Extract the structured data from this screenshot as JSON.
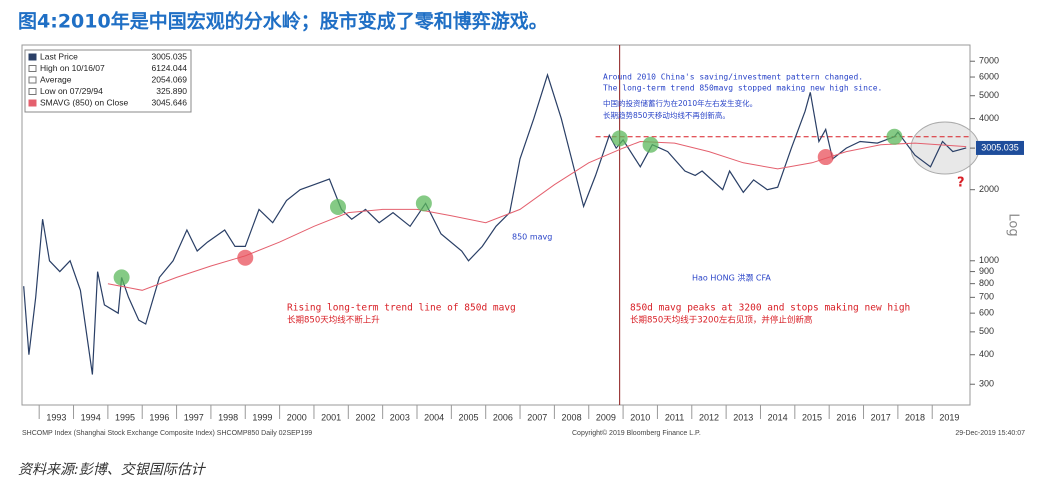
{
  "title": "图4:2010年是中国宏观的分水岭；股市变成了零和博弈游戏。",
  "source": "资料来源:彭博、交银国际估计",
  "chart_data": {
    "type": "line",
    "log_scale": true,
    "xlim": [
      1992.5,
      2020.1
    ],
    "ylim": [
      245,
      8200
    ],
    "xticks": [
      {
        "value": 1993,
        "label": "1993"
      },
      {
        "value": 1994,
        "label": "1994"
      },
      {
        "value": 1995,
        "label": "1995"
      },
      {
        "value": 1996,
        "label": "1996"
      },
      {
        "value": 1997,
        "label": "1997"
      },
      {
        "value": 1998,
        "label": "1998"
      },
      {
        "value": 1999,
        "label": "1999"
      },
      {
        "value": 2000,
        "label": "2000"
      },
      {
        "value": 2001,
        "label": "2001"
      },
      {
        "value": 2002,
        "label": "2002"
      },
      {
        "value": 2003,
        "label": "2003"
      },
      {
        "value": 2004,
        "label": "2004"
      },
      {
        "value": 2005,
        "label": "2005"
      },
      {
        "value": 2006,
        "label": "2006"
      },
      {
        "value": 2007,
        "label": "2007"
      },
      {
        "value": 2008,
        "label": "2008"
      },
      {
        "value": 2009,
        "label": "2009"
      },
      {
        "value": 2010,
        "label": "2010"
      },
      {
        "value": 2011,
        "label": "2011"
      },
      {
        "value": 2012,
        "label": "2012"
      },
      {
        "value": 2013,
        "label": "2013"
      },
      {
        "value": 2014,
        "label": "2014"
      },
      {
        "value": 2015,
        "label": "2015"
      },
      {
        "value": 2016,
        "label": "2016"
      },
      {
        "value": 2017,
        "label": "2017"
      },
      {
        "value": 2018,
        "label": "2018"
      },
      {
        "value": 2019,
        "label": "2019"
      }
    ],
    "yticks": [
      300,
      400,
      500,
      600,
      700,
      800,
      900,
      1000,
      2000,
      3000,
      4000,
      5000,
      6000,
      7000
    ],
    "y_label": "Log",
    "series": [
      {
        "name": "Last Price",
        "color": "#2a3f66",
        "x": [
          1992.55,
          1992.7,
          1992.9,
          1993.1,
          1993.3,
          1993.6,
          1993.9,
          1994.2,
          1994.55,
          1994.7,
          1994.9,
          1995.3,
          1995.4,
          1995.6,
          1995.9,
          1996.1,
          1996.5,
          1996.9,
          1997.3,
          1997.6,
          1997.9,
          1998.4,
          1998.7,
          1999.0,
          1999.4,
          1999.8,
          2000.2,
          2000.6,
          2001.0,
          2001.45,
          2001.8,
          2002.1,
          2002.5,
          2002.9,
          2003.3,
          2003.8,
          2004.25,
          2004.7,
          2005.3,
          2005.5,
          2005.9,
          2006.3,
          2006.7,
          2007.0,
          2007.4,
          2007.8,
          2008.2,
          2008.5,
          2008.85,
          2009.2,
          2009.6,
          2009.8,
          2010.0,
          2010.5,
          2010.85,
          2011.3,
          2011.8,
          2012.1,
          2012.3,
          2012.9,
          2013.1,
          2013.5,
          2013.8,
          2014.2,
          2014.5,
          2014.9,
          2015.3,
          2015.45,
          2015.7,
          2015.9,
          2016.1,
          2016.5,
          2016.9,
          2017.4,
          2017.9,
          2018.0,
          2018.5,
          2018.95,
          2019.3,
          2019.6,
          2019.99
        ],
        "values": [
          780,
          400,
          700,
          1500,
          1000,
          900,
          1000,
          750,
          330,
          900,
          650,
          600,
          850,
          700,
          560,
          540,
          850,
          1000,
          1350,
          1100,
          1200,
          1350,
          1150,
          1150,
          1650,
          1450,
          1800,
          2000,
          2100,
          2220,
          1650,
          1500,
          1650,
          1450,
          1600,
          1400,
          1750,
          1300,
          1100,
          1000,
          1150,
          1400,
          1600,
          2700,
          4000,
          6124,
          4000,
          2700,
          1700,
          2300,
          3400,
          3000,
          3250,
          2500,
          3100,
          2900,
          2400,
          2300,
          2400,
          2000,
          2400,
          1950,
          2200,
          2000,
          2050,
          3000,
          4300,
          5170,
          3200,
          3600,
          2700,
          3000,
          3200,
          3150,
          3350,
          3500,
          2800,
          2500,
          3200,
          2900,
          3005
        ]
      },
      {
        "name": "SMAVG (850)",
        "color": "#e4606e",
        "x": [
          1995.0,
          1996.0,
          1997.0,
          1998.0,
          1999.0,
          2000.0,
          2001.0,
          2002.0,
          2003.0,
          2004.0,
          2005.0,
          2006.0,
          2007.0,
          2008.0,
          2009.0,
          2010.0,
          2010.5,
          2011.5,
          2012.5,
          2013.5,
          2014.5,
          2015.5,
          2016.5,
          2017.5,
          2018.5,
          2019.99
        ],
        "values": [
          800,
          750,
          850,
          950,
          1050,
          1200,
          1400,
          1600,
          1650,
          1650,
          1550,
          1450,
          1650,
          2100,
          2600,
          3000,
          3200,
          3150,
          2900,
          2600,
          2450,
          2600,
          2900,
          3100,
          3150,
          3045
        ]
      }
    ],
    "hline": 3350,
    "hline_start": 2009.2,
    "hline_color": "#d81f26",
    "vline": 2009.9,
    "vline_color": "#8b1a1a",
    "markers": [
      {
        "x": 1995.4,
        "y": 850,
        "color": "#5cb85c"
      },
      {
        "x": 2001.7,
        "y": 1690,
        "color": "#5cb85c"
      },
      {
        "x": 2004.2,
        "y": 1750,
        "color": "#5cb85c"
      },
      {
        "x": 2009.9,
        "y": 3300,
        "color": "#5cb85c"
      },
      {
        "x": 2010.8,
        "y": 3100,
        "color": "#5cb85c"
      },
      {
        "x": 2017.9,
        "y": 3350,
        "color": "#5cb85c"
      },
      {
        "x": 1999.0,
        "y": 1030,
        "color": "#e8505b"
      },
      {
        "x": 2015.9,
        "y": 2750,
        "color": "#e8505b"
      }
    ],
    "last_price": {
      "value": 3005.035,
      "label": "3005.035"
    },
    "legend_stats": [
      {
        "label": "Last Price",
        "value": "3005.035"
      },
      {
        "label": "High on 10/16/07",
        "value": "6124.044"
      },
      {
        "label": "Average",
        "value": "2054.069"
      },
      {
        "label": "Low on 07/29/94",
        "value": "325.890"
      },
      {
        "label": "SMAVG (850)  on Close",
        "value": "3045.646"
      }
    ],
    "annotations": {
      "en_1": "Around 2010 China's saving/investment pattern changed.",
      "en_2": "The long-term trend 850mavg stopped making new high since.",
      "cn_1": "中国的投资储蓄行为在2010年左右发生变化。",
      "cn_2": "长期趋势850天移动均线不再创新高。",
      "mavg": "850 mavg",
      "author": "Hao HONG 洪灏 CFA",
      "rising_en": "Rising long-term trend line of 850d mavg",
      "rising_cn": "长期850天均线不断上升",
      "peak_en": "850d mavg peaks at 3200 and stops making new high",
      "peak_cn": "长期850天均线于3200左右见顶，并停止创新高",
      "question": "?"
    },
    "footer_left": "SHCOMP Index (Shanghai Stock Exchange Composite Index) SHCOMP850 Daily 02SEP199",
    "footer_mid": "Copyright© 2019 Bloomberg Finance L.P.",
    "footer_right": "29-Dec-2019 15:40:07"
  }
}
